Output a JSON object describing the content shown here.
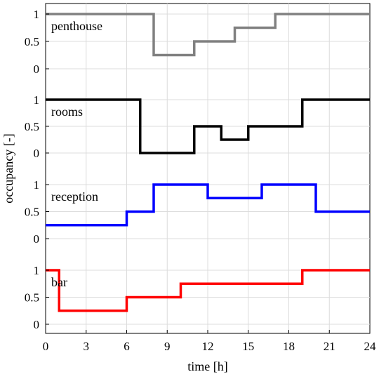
{
  "chart_data": {
    "type": "line",
    "step": "post",
    "xlabel": "time [h]",
    "ylabel": "occupancy [-]",
    "xlim": [
      0,
      24
    ],
    "x_ticks": [
      "0",
      "3",
      "6",
      "9",
      "12",
      "15",
      "18",
      "21",
      "24"
    ],
    "x_tick_values": [
      0,
      3,
      6,
      9,
      12,
      15,
      18,
      21,
      24
    ],
    "ylim": [
      0,
      1
    ],
    "y_ticks": [
      "0",
      "0.5",
      "1"
    ],
    "y_tick_values": [
      0,
      0.5,
      1
    ],
    "grid": true,
    "series": [
      {
        "name": "penthouse",
        "color": "#808080",
        "x": [
          0,
          8,
          11,
          14,
          17,
          24
        ],
        "values": [
          1,
          0.25,
          0.5,
          0.75,
          1,
          1
        ]
      },
      {
        "name": "rooms",
        "color": "#000000",
        "x": [
          0,
          7,
          11,
          13,
          15,
          19,
          24
        ],
        "values": [
          1,
          0,
          0.5,
          0.25,
          0.5,
          1,
          1
        ]
      },
      {
        "name": "reception",
        "color": "#0000ff",
        "x": [
          0,
          6,
          8,
          12,
          16,
          20,
          24
        ],
        "values": [
          0.25,
          0.5,
          1,
          0.75,
          1,
          0.5,
          0.5
        ]
      },
      {
        "name": "bar",
        "color": "#ff0000",
        "x": [
          0,
          1,
          6,
          10,
          19,
          24
        ],
        "values": [
          1,
          0.25,
          0.5,
          0.75,
          1,
          1
        ]
      }
    ]
  }
}
